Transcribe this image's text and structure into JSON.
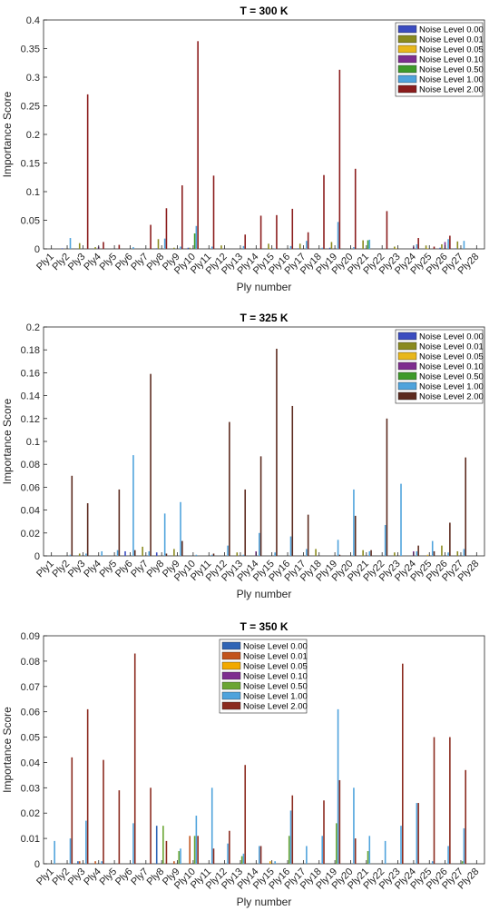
{
  "chart_data": [
    {
      "type": "bar",
      "title": "T = 300 K",
      "xlabel": "Ply number",
      "ylabel": "Importance Score",
      "ylim": [
        0,
        0.4
      ],
      "yticks": [
        "0",
        "0.05",
        "0.1",
        "0.15",
        "0.2",
        "0.25",
        "0.3",
        "0.35",
        "0.4"
      ],
      "legend_position": "top-right",
      "categories": [
        "Ply1",
        "Ply2",
        "Ply3",
        "Ply4",
        "Ply5",
        "Ply6",
        "Ply7",
        "Ply8",
        "Ply9",
        "Ply10",
        "Ply11",
        "Ply12",
        "Ply13",
        "Ply14",
        "Ply15",
        "Ply16",
        "Ply17",
        "Ply18",
        "Ply19",
        "Ply20",
        "Ply21",
        "Ply22",
        "Ply23",
        "Ply24",
        "Ply25",
        "Ply26",
        "Ply27",
        "Ply28"
      ],
      "series": [
        {
          "name": "Noise Level 0.00",
          "color": "#3b4cc0",
          "values": [
            0,
            0.001,
            0,
            0,
            0,
            0,
            0,
            0.001,
            0,
            0.002,
            0,
            0,
            0,
            0,
            0,
            0,
            0.001,
            0,
            0.002,
            0,
            0,
            0,
            0,
            0,
            0,
            0.002,
            0.001,
            0
          ]
        },
        {
          "name": "Noise Level 0.01",
          "color": "#8a8a1e",
          "values": [
            0,
            0,
            0.01,
            0.003,
            0,
            0,
            0,
            0.017,
            0.002,
            0.002,
            0,
            0.006,
            0,
            0,
            0.009,
            0,
            0.009,
            0,
            0.012,
            0,
            0.015,
            0,
            0.004,
            0,
            0.006,
            0.008,
            0.013,
            0
          ]
        },
        {
          "name": "Noise Level 0.05",
          "color": "#e8b71b",
          "values": [
            0,
            0,
            0,
            0,
            0,
            0,
            0,
            0,
            0,
            0,
            0,
            0,
            0,
            0,
            0.001,
            0,
            0,
            0,
            0,
            0,
            0,
            0,
            0.001,
            0,
            0.001,
            0,
            0,
            0
          ]
        },
        {
          "name": "Noise Level 0.10",
          "color": "#7e2d8f",
          "values": [
            0,
            0,
            0,
            0.004,
            0,
            0,
            0,
            0,
            0,
            0,
            0,
            0,
            0,
            0,
            0,
            0,
            0,
            0,
            0,
            0,
            0,
            0,
            0,
            0.004,
            0,
            0.012,
            0,
            0
          ]
        },
        {
          "name": "Noise Level 0.50",
          "color": "#3e9a2a",
          "values": [
            0,
            0,
            0,
            0,
            0,
            0,
            0,
            0,
            0,
            0.027,
            0,
            0,
            0,
            0,
            0,
            0,
            0,
            0,
            0,
            0,
            0.015,
            0,
            0,
            0,
            0,
            0,
            0,
            0
          ]
        },
        {
          "name": "Noise Level 1.00",
          "color": "#4fa3dc",
          "values": [
            0,
            0.019,
            0,
            0,
            0,
            0.003,
            0,
            0.018,
            0.004,
            0.04,
            0.004,
            0,
            0.005,
            0,
            0.001,
            0.005,
            0.014,
            0.002,
            0.047,
            0.003,
            0.016,
            0,
            0,
            0.008,
            0,
            0.017,
            0.014,
            0
          ]
        },
        {
          "name": "Noise Level 2.00",
          "color": "#8b1c1c",
          "values": [
            0,
            0,
            0.27,
            0.012,
            0.007,
            0,
            0.042,
            0.071,
            0.111,
            0.363,
            0.128,
            0,
            0.025,
            0.058,
            0.059,
            0.07,
            0.029,
            0.129,
            0.313,
            0.14,
            0,
            0.066,
            0,
            0.019,
            0.004,
            0.023,
            0,
            0
          ]
        }
      ]
    },
    {
      "type": "bar",
      "title": "T = 325 K",
      "xlabel": "Ply number",
      "ylabel": "Importance Score",
      "ylim": [
        0,
        0.2
      ],
      "yticks": [
        "0",
        "0.02",
        "0.04",
        "0.06",
        "0.08",
        "0.1",
        "0.12",
        "0.14",
        "0.16",
        "0.18",
        "0.2"
      ],
      "legend_position": "top-right",
      "categories": [
        "Ply1",
        "Ply2",
        "Ply3",
        "Ply4",
        "Ply5",
        "Ply6",
        "Ply7",
        "Ply8",
        "Ply9",
        "Ply10",
        "Ply11",
        "Ply12",
        "Ply13",
        "Ply14",
        "Ply15",
        "Ply16",
        "Ply17",
        "Ply18",
        "Ply19",
        "Ply20",
        "Ply21",
        "Ply22",
        "Ply23",
        "Ply24",
        "Ply25",
        "Ply26",
        "Ply27",
        "Ply28"
      ],
      "series": [
        {
          "name": "Noise Level 0.00",
          "color": "#3b4cc0",
          "values": [
            0,
            0,
            0,
            0,
            0,
            0.004,
            0,
            0.003,
            0,
            0,
            0,
            0,
            0,
            0,
            0,
            0,
            0,
            0,
            0,
            0,
            0,
            0,
            0,
            0,
            0,
            0,
            0,
            0
          ]
        },
        {
          "name": "Noise Level 0.01",
          "color": "#8a8a1e",
          "values": [
            0,
            0,
            0.002,
            0,
            0,
            0,
            0.008,
            0,
            0.006,
            0,
            0,
            0,
            0.003,
            0,
            0,
            0,
            0,
            0.006,
            0,
            0,
            0.005,
            0,
            0.003,
            0,
            0,
            0.009,
            0.004,
            0
          ]
        },
        {
          "name": "Noise Level 0.05",
          "color": "#e8b71b",
          "values": [
            0,
            0,
            0,
            0,
            0,
            0,
            0,
            0,
            0,
            0,
            0,
            0,
            0,
            0,
            0,
            0,
            0,
            0,
            0,
            0,
            0,
            0,
            0,
            0,
            0.001,
            0,
            0,
            0
          ]
        },
        {
          "name": "Noise Level 0.10",
          "color": "#7e2d8f",
          "values": [
            0,
            0,
            0,
            0,
            0,
            0,
            0,
            0,
            0,
            0,
            0,
            0,
            0,
            0.004,
            0,
            0,
            0,
            0,
            0,
            0,
            0,
            0,
            0,
            0.004,
            0,
            0,
            0,
            0
          ]
        },
        {
          "name": "Noise Level 0.50",
          "color": "#3e9a2a",
          "values": [
            0,
            0,
            0,
            0,
            0,
            0,
            0,
            0,
            0,
            0,
            0,
            0,
            0,
            0,
            0,
            0,
            0,
            0,
            0,
            0,
            0,
            0,
            0,
            0,
            0,
            0,
            0,
            0
          ]
        },
        {
          "name": "Noise Level 1.00",
          "color": "#4fa3dc",
          "values": [
            0,
            0.001,
            0.002,
            0.004,
            0.005,
            0.088,
            0.004,
            0.037,
            0.047,
            0.001,
            0.001,
            0.009,
            0.001,
            0.02,
            0.003,
            0.017,
            0.006,
            0,
            0.014,
            0.058,
            0.004,
            0.027,
            0.063,
            0.004,
            0.013,
            0.003,
            0.006,
            0
          ]
        },
        {
          "name": "Noise Level 2.00",
          "color": "#5c2a1e",
          "values": [
            0,
            0.07,
            0.046,
            0,
            0.058,
            0.005,
            0.159,
            0.002,
            0.013,
            0,
            0.002,
            0.117,
            0.058,
            0.087,
            0.181,
            0.131,
            0.036,
            0,
            0.001,
            0.035,
            0.005,
            0.12,
            0,
            0.009,
            0.004,
            0.029,
            0.086,
            0
          ]
        }
      ]
    },
    {
      "type": "bar",
      "title": "T = 350 K",
      "xlabel": "Ply number",
      "ylabel": "Importance Score",
      "ylim": [
        0,
        0.09
      ],
      "yticks": [
        "0",
        "0.01",
        "0.02",
        "0.03",
        "0.04",
        "0.05",
        "0.06",
        "0.07",
        "0.08",
        "0.09"
      ],
      "legend_position": "top-center",
      "categories": [
        "Ply1",
        "Ply2",
        "Ply3",
        "Ply4",
        "Ply5",
        "Ply6",
        "Ply7",
        "Ply8",
        "Ply9",
        "Ply10",
        "Ply11",
        "Ply12",
        "Ply13",
        "Ply14",
        "Ply15",
        "Ply16",
        "Ply17",
        "Ply18",
        "Ply19",
        "Ply20",
        "Ply21",
        "Ply22",
        "Ply23",
        "Ply24",
        "Ply25",
        "Ply26",
        "Ply27",
        "Ply28"
      ],
      "series": [
        {
          "name": "Noise Level 0.00",
          "color": "#2f64b5",
          "values": [
            0,
            0,
            0.001,
            0,
            0,
            0,
            0,
            0.015,
            0,
            0,
            0,
            0,
            0,
            0,
            0,
            0,
            0,
            0,
            0,
            0,
            0,
            0,
            0,
            0,
            0,
            0,
            0,
            0
          ]
        },
        {
          "name": "Noise Level 0.01",
          "color": "#c2541c",
          "values": [
            0,
            0,
            0.001,
            0.001,
            0,
            0,
            0,
            0,
            0.001,
            0.011,
            0,
            0,
            0,
            0,
            0,
            0,
            0,
            0,
            0,
            0,
            0,
            0,
            0,
            0,
            0,
            0,
            0,
            0
          ]
        },
        {
          "name": "Noise Level 0.05",
          "color": "#f2a900",
          "values": [
            0,
            0,
            0,
            0,
            0,
            0,
            0,
            0,
            0,
            0,
            0,
            0,
            0,
            0,
            0.001,
            0,
            0,
            0,
            0,
            0,
            0,
            0,
            0,
            0,
            0,
            0,
            0,
            0
          ]
        },
        {
          "name": "Noise Level 0.10",
          "color": "#7e2d8f",
          "values": [
            0,
            0,
            0,
            0,
            0,
            0,
            0,
            0,
            0,
            0,
            0,
            0,
            0,
            0,
            0,
            0,
            0,
            0,
            0,
            0,
            0,
            0,
            0,
            0,
            0,
            0,
            0,
            0
          ]
        },
        {
          "name": "Noise Level 0.50",
          "color": "#6aa532",
          "values": [
            0,
            0,
            0,
            0,
            0,
            0,
            0,
            0.015,
            0.005,
            0.011,
            0,
            0,
            0.003,
            0,
            0,
            0.011,
            0,
            0,
            0.016,
            0,
            0.005,
            0,
            0,
            0,
            0,
            0,
            0.001,
            0
          ]
        },
        {
          "name": "Noise Level 1.00",
          "color": "#4fa3dc",
          "values": [
            0.009,
            0.01,
            0.017,
            0.001,
            0,
            0.016,
            0,
            0,
            0.006,
            0.019,
            0.03,
            0.008,
            0.004,
            0.007,
            0.001,
            0.021,
            0.007,
            0.011,
            0.061,
            0.03,
            0.011,
            0.009,
            0.015,
            0.024,
            0.001,
            0.007,
            0.014,
            0
          ]
        },
        {
          "name": "Noise Level 2.00",
          "color": "#8b2a1e",
          "values": [
            0,
            0.042,
            0.061,
            0.041,
            0.029,
            0.083,
            0.03,
            0.009,
            0,
            0.011,
            0.006,
            0.013,
            0.039,
            0.007,
            0,
            0.027,
            0,
            0.025,
            0.033,
            0.01,
            0,
            0,
            0.079,
            0.024,
            0.05,
            0.05,
            0.037,
            0
          ]
        }
      ]
    }
  ]
}
